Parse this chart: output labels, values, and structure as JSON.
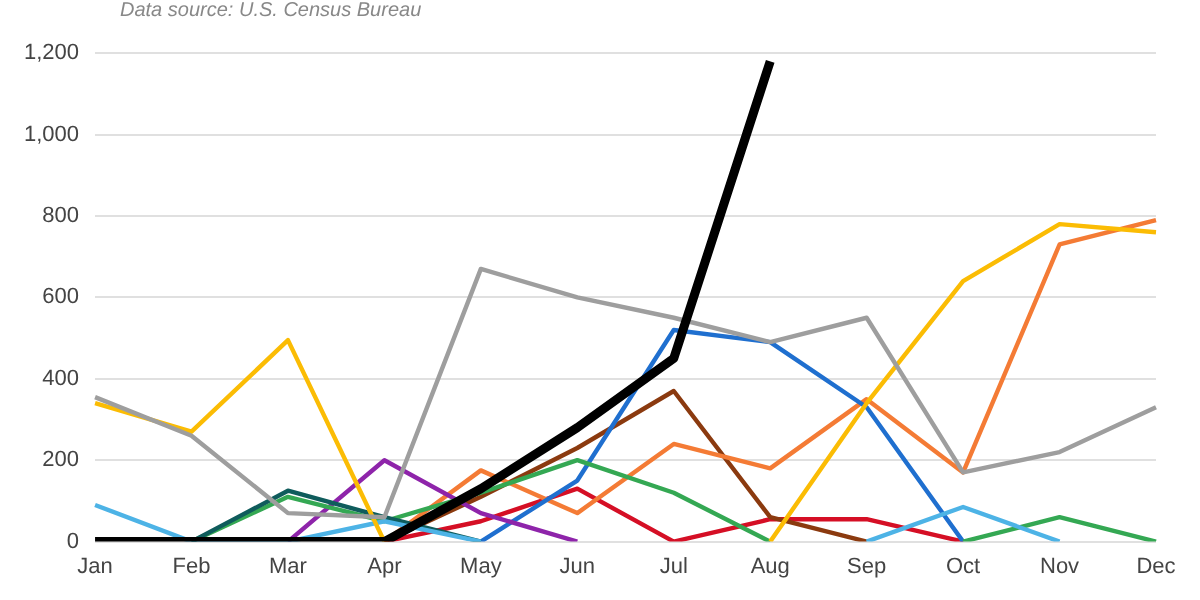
{
  "chart_data": {
    "type": "line",
    "subtitle": "Data source: U.S. Census Bureau",
    "categories": [
      "Jan",
      "Feb",
      "Mar",
      "Apr",
      "May",
      "Jun",
      "Jul",
      "Aug",
      "Sep",
      "Oct",
      "Nov",
      "Dec"
    ],
    "series": [
      {
        "color": "#9e9e9e",
        "values": [
          355,
          260,
          70,
          60,
          670,
          600,
          550,
          490,
          550,
          170,
          220,
          330
        ]
      },
      {
        "color": "#fbbc04",
        "values": [
          340,
          270,
          495,
          0,
          null,
          null,
          null,
          0,
          340,
          640,
          780,
          760
        ]
      },
      {
        "color": "#4db3e6",
        "values": [
          90,
          0,
          0,
          50,
          0,
          null,
          null,
          null,
          0,
          85,
          0,
          null
        ]
      },
      {
        "color": "#0f5c5c",
        "values": [
          null,
          0,
          125,
          60,
          0,
          null,
          null,
          null,
          null,
          null,
          null,
          null
        ]
      },
      {
        "color": "#34a853",
        "values": [
          null,
          0,
          110,
          50,
          120,
          200,
          120,
          0,
          null,
          0,
          60,
          0
        ]
      },
      {
        "color": "#8e24aa",
        "values": [
          null,
          null,
          0,
          200,
          70,
          0,
          null,
          null,
          null,
          null,
          null,
          null
        ]
      },
      {
        "color": "#1f6fcf",
        "values": [
          null,
          null,
          null,
          null,
          0,
          150,
          520,
          490,
          330,
          0,
          null,
          null
        ]
      },
      {
        "color": "#f47b35",
        "values": [
          null,
          null,
          null,
          0,
          175,
          70,
          240,
          180,
          350,
          170,
          730,
          790
        ]
      },
      {
        "color": "#8b3a0f",
        "values": [
          null,
          null,
          null,
          0,
          110,
          230,
          370,
          60,
          0,
          null,
          null,
          null
        ]
      },
      {
        "color": "#d50f25",
        "values": [
          null,
          null,
          null,
          0,
          50,
          130,
          0,
          55,
          55,
          0,
          null,
          null
        ]
      },
      {
        "color": "#000000",
        "values": [
          0,
          0,
          0,
          0,
          130,
          280,
          450,
          1180,
          null,
          null,
          null,
          null
        ]
      }
    ],
    "ylim": [
      0,
      1200
    ],
    "yticks": [
      0,
      200,
      400,
      600,
      800,
      {
        "value": 1000,
        "label": "1,000"
      },
      {
        "value": 1200,
        "label": "1,200"
      }
    ],
    "grid": "y",
    "legend": false,
    "marker": "none",
    "line_style": "solid"
  }
}
